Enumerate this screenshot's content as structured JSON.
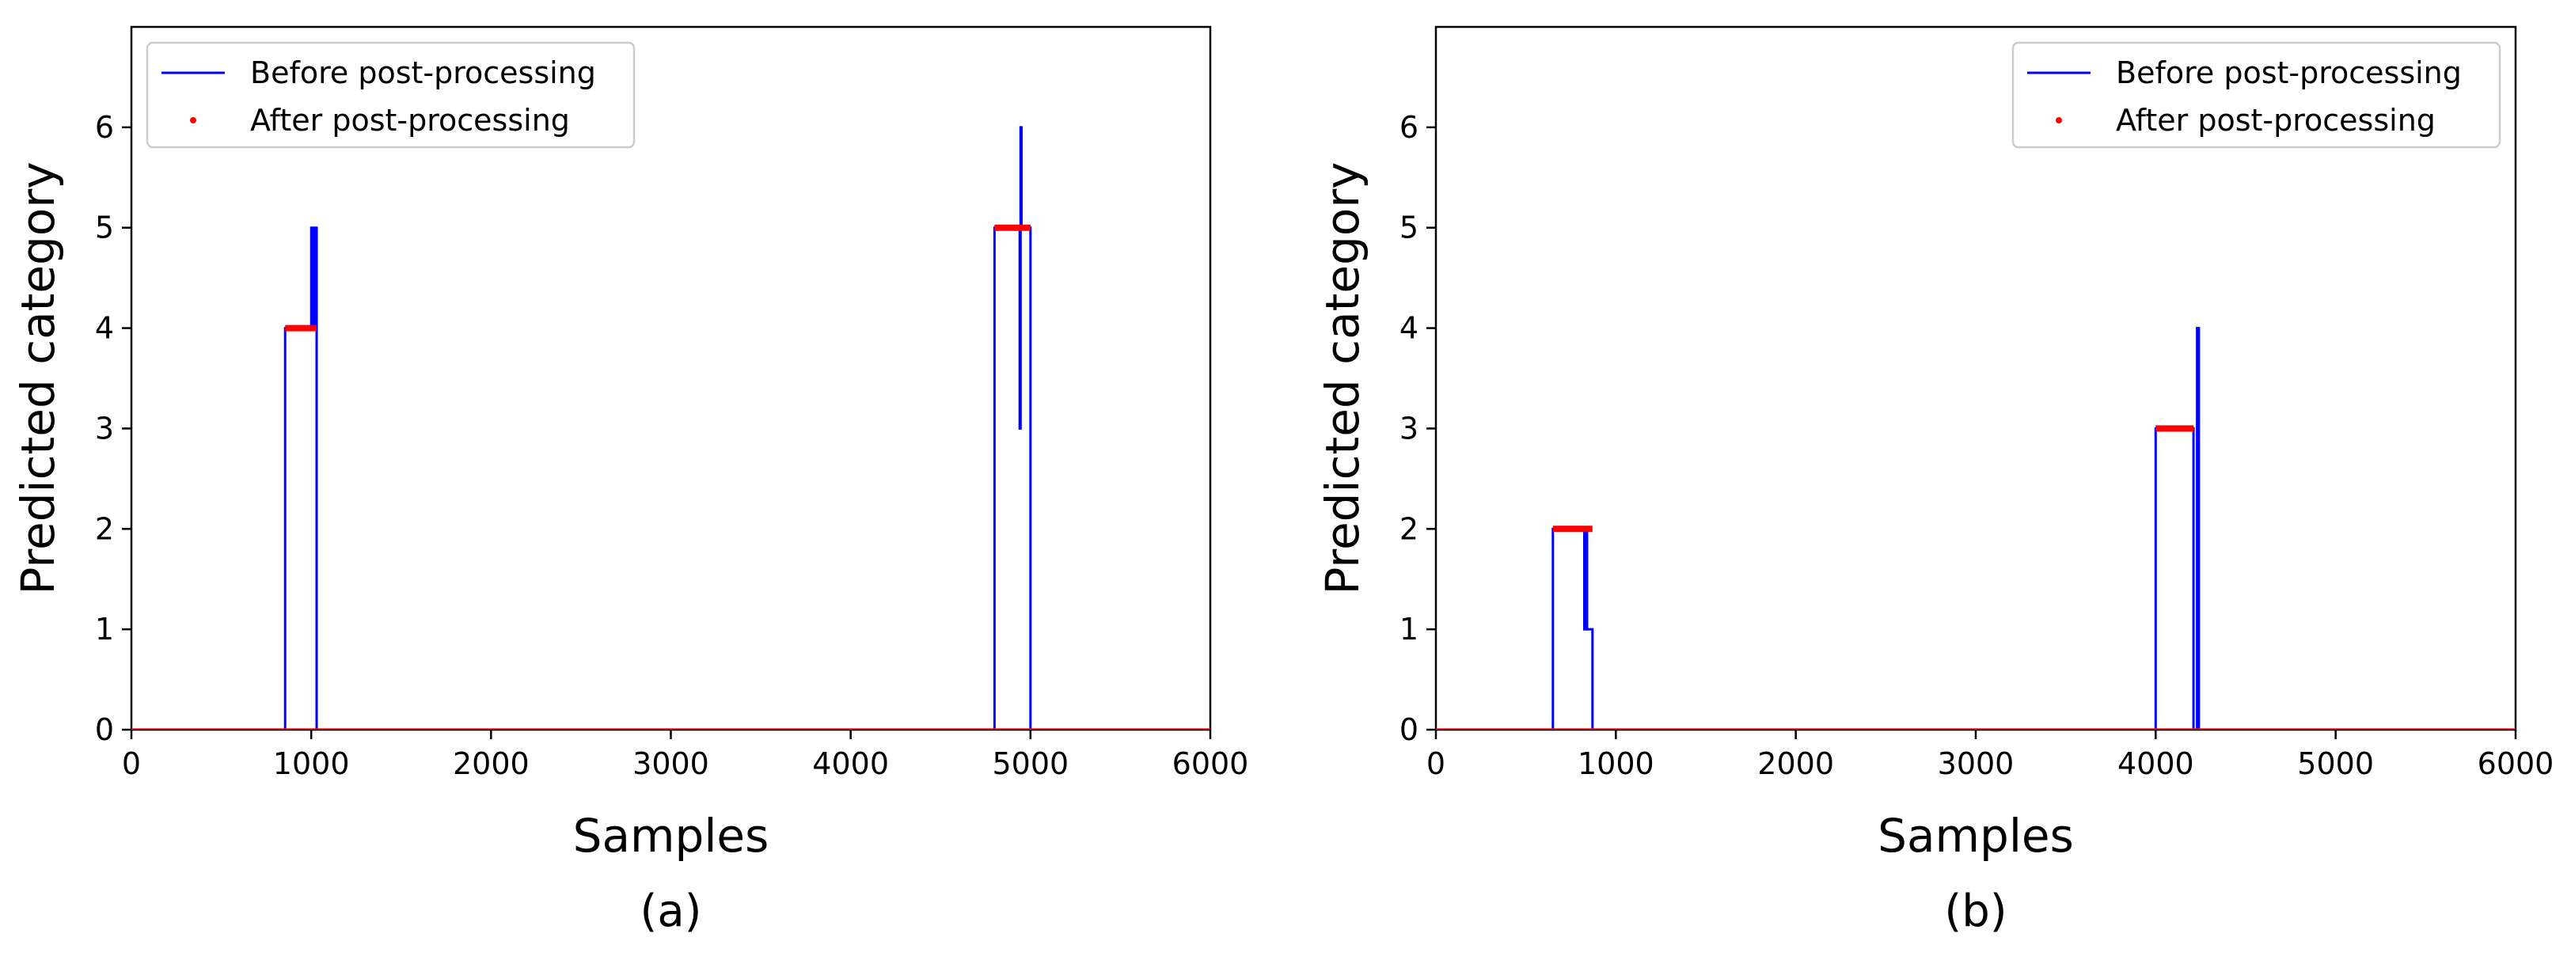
{
  "chart_data": [
    {
      "type": "line",
      "caption": "(a)",
      "xlabel": "Samples",
      "ylabel": "Predicted category",
      "xlim": [
        0,
        6000
      ],
      "ylim": [
        0,
        7
      ],
      "xticks": [
        0,
        1000,
        2000,
        3000,
        4000,
        5000,
        6000
      ],
      "yticks": [
        0,
        1,
        2,
        3,
        4,
        5,
        6
      ],
      "grid": false,
      "legend": {
        "placement": "top-left",
        "entries": [
          "Before post-processing",
          "After post-processing"
        ]
      },
      "series": [
        {
          "name": "Before post-processing",
          "style": "line",
          "color": "#0000ff",
          "x": [
            0,
            855,
            855,
            1000,
            1000,
            1003,
            1003,
            1008,
            1008,
            1012,
            1012,
            1020,
            1020,
            1030,
            1030,
            4800,
            4800,
            4940,
            4940,
            4945,
            4945,
            4950,
            4950,
            5000,
            5000,
            6000
          ],
          "y": [
            0,
            0,
            4,
            4,
            5,
            5,
            4,
            4,
            5,
            5,
            4,
            4,
            5,
            5,
            0,
            0,
            5,
            5,
            3,
            3,
            6,
            6,
            5,
            5,
            0,
            0
          ]
        },
        {
          "name": "After post-processing",
          "style": "points",
          "color": "#ff0000",
          "segments": [
            {
              "x_start": 0,
              "x_end": 6000,
              "y": 0
            },
            {
              "x_start": 855,
              "x_end": 1030,
              "y": 4
            },
            {
              "x_start": 4800,
              "x_end": 5000,
              "y": 5
            }
          ]
        }
      ]
    },
    {
      "type": "line",
      "caption": "(b)",
      "xlabel": "Samples",
      "ylabel": "Predicted category",
      "xlim": [
        0,
        6000
      ],
      "ylim": [
        0,
        7
      ],
      "xticks": [
        0,
        1000,
        2000,
        3000,
        4000,
        5000,
        6000
      ],
      "yticks": [
        0,
        1,
        2,
        3,
        4,
        5,
        6
      ],
      "grid": false,
      "legend": {
        "placement": "top-right",
        "entries": [
          "Before post-processing",
          "After post-processing"
        ]
      },
      "series": [
        {
          "name": "Before post-processing",
          "style": "line",
          "color": "#0000ff",
          "x": [
            0,
            650,
            650,
            825,
            825,
            835,
            835,
            840,
            840,
            870,
            870,
            4000,
            4000,
            4210,
            4210,
            4230,
            4230,
            4240,
            4240,
            6000
          ],
          "y": [
            0,
            0,
            2,
            2,
            1,
            1,
            2,
            2,
            1,
            1,
            0,
            0,
            3,
            3,
            0,
            0,
            4,
            4,
            0,
            0
          ]
        },
        {
          "name": "After post-processing",
          "style": "points",
          "color": "#ff0000",
          "segments": [
            {
              "x_start": 0,
              "x_end": 6000,
              "y": 0
            },
            {
              "x_start": 650,
              "x_end": 870,
              "y": 2
            },
            {
              "x_start": 4000,
              "x_end": 4210,
              "y": 3
            }
          ]
        }
      ]
    }
  ]
}
